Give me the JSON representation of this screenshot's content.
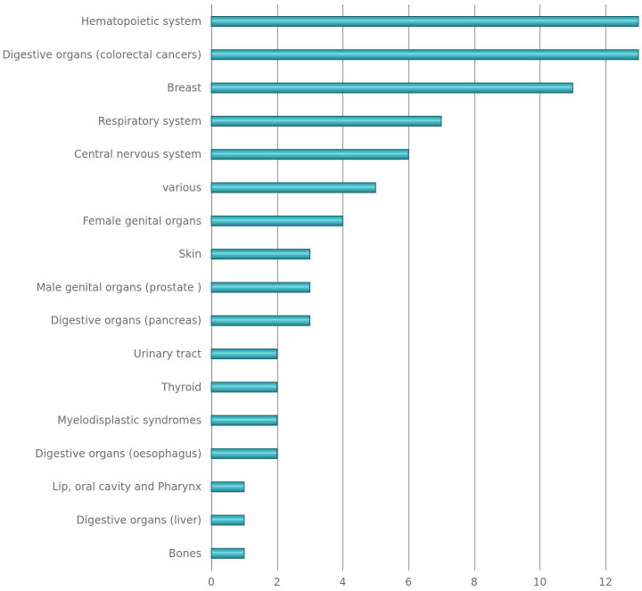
{
  "colors": {
    "bar_top": "#2a9aa5",
    "bar_mid": "#5fd0dc",
    "bar_bottom": "#1f7f8a",
    "bar_stroke": "#17656e",
    "grid": "#9a9a9a",
    "text": "#6b6b6b"
  },
  "chart_data": {
    "type": "bar",
    "orientation": "horizontal",
    "categories": [
      "Hematopoietic system",
      "Digestive organs (colorectal cancers)",
      "Breast",
      "Respiratory system",
      "Central nervous system",
      "various",
      "Female genital organs",
      "Skin",
      "Male genital organs (prostate )",
      "Digestive organs (pancreas)",
      "Urinary tract",
      "Thyroid",
      "Myelodisplastic syndromes",
      "Digestive organs (oesophagus)",
      "Lip, oral cavity and Pharynx",
      "Digestive organs (liver)",
      "Bones"
    ],
    "values": [
      13,
      13,
      11,
      7,
      6,
      5,
      4,
      3,
      3,
      3,
      2,
      2,
      2,
      2,
      1,
      1,
      1
    ],
    "xlim": [
      0,
      13
    ],
    "xticks": [
      0,
      2,
      4,
      6,
      8,
      10,
      12
    ],
    "grid": true,
    "title": "",
    "xlabel": "",
    "ylabel": ""
  }
}
